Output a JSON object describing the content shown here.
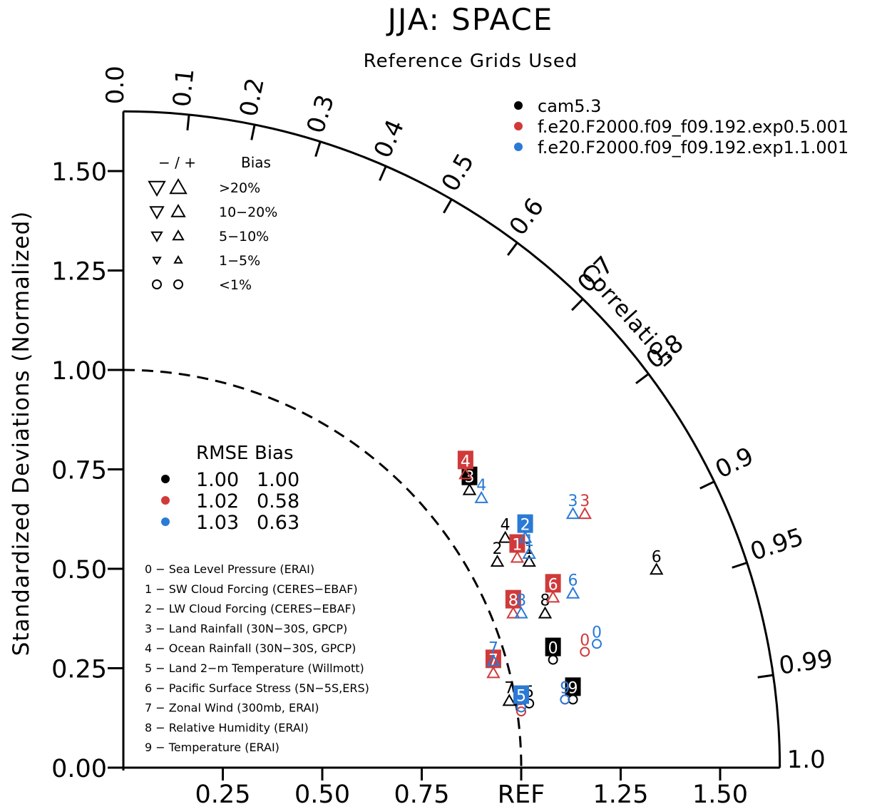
{
  "chart_data": {
    "type": "scatter",
    "subtype": "taylor-diagram",
    "title": "JJA: SPACE",
    "subtitle": "Reference Grids Used",
    "ylabel": "Standardized Deviations (Normalized)",
    "angular_label": "Correlation",
    "ref_label": "REF",
    "ylim": [
      0,
      1.65
    ],
    "std_ticks": [
      "0.00",
      "0.25",
      "0.50",
      "0.75",
      "1.00",
      "1.25",
      "1.50"
    ],
    "x_ticks": [
      "0.25",
      "0.50",
      "0.75",
      "REF",
      "1.25",
      "1.50"
    ],
    "corr_ticks": [
      "0.0",
      "0.1",
      "0.2",
      "0.3",
      "0.4",
      "0.5",
      "0.6",
      "0.7",
      "0.8",
      "0.9",
      "0.95",
      "0.99",
      "1.0"
    ],
    "reference_arc_radius": 1.0,
    "grid": false,
    "legend": {
      "placement": "top-right",
      "entries": [
        {
          "name": "cam5.3",
          "color": "#000000"
        },
        {
          "name": "f.e20.F2000.f09_f09.192.exp0.5.001",
          "color": "#d03a3a"
        },
        {
          "name": "f.e20.F2000.f09_f09.192.exp1.1.001",
          "color": "#2a7ad6"
        }
      ]
    },
    "bias_key": {
      "header_sign": "− / +",
      "header_label": "Bias",
      "rows": [
        ">20%",
        "10−20%",
        "5−10%",
        "1−5%",
        "<1%"
      ]
    },
    "rmse_table": {
      "headers": [
        "RMSE",
        "Bias"
      ],
      "rows": [
        {
          "rmse": "1.00",
          "bias": "1.00",
          "color": "#000000"
        },
        {
          "rmse": "1.02",
          "bias": "0.58",
          "color": "#d03a3a"
        },
        {
          "rmse": "1.03",
          "bias": "0.63",
          "color": "#2a7ad6"
        }
      ]
    },
    "variables": [
      "0 − Sea Level Pressure (ERAI)",
      "1 − SW Cloud Forcing (CERES−EBAF)",
      "2 − LW Cloud Forcing (CERES−EBAF)",
      "3 − Land Rainfall (30N−30S, GPCP)",
      "4 − Ocean Rainfall (30N−30S, GPCP)",
      "5 − Land 2−m Temperature (Willmott)",
      "6 − Pacific Surface Stress (5N−5S,ERS)",
      "7 − Zonal Wind (300mb, ERAI)",
      "8 − Relative Humidity (ERAI)",
      "9 − Temperature (ERAI)"
    ],
    "series": [
      {
        "name": "cam5.3",
        "color": "#000000",
        "points": [
          {
            "label": "0",
            "x": 1.08,
            "y": 0.3,
            "boxed": true,
            "marker": "circle"
          },
          {
            "label": "1",
            "x": 1.02,
            "y": 0.55,
            "boxed": false,
            "marker": "triangle-up"
          },
          {
            "label": "2",
            "x": 0.94,
            "y": 0.55,
            "boxed": false,
            "marker": "triangle-up"
          },
          {
            "label": "3",
            "x": 0.87,
            "y": 0.73,
            "boxed": true,
            "marker": "triangle-up"
          },
          {
            "label": "4",
            "x": 0.96,
            "y": 0.61,
            "boxed": false,
            "marker": "triangle-up"
          },
          {
            "label": "5",
            "x": 1.02,
            "y": 0.19,
            "boxed": false,
            "marker": "circle"
          },
          {
            "label": "6",
            "x": 1.34,
            "y": 0.53,
            "boxed": false,
            "marker": "triangle-up"
          },
          {
            "label": "7",
            "x": 0.97,
            "y": 0.2,
            "boxed": false,
            "marker": "triangle-up"
          },
          {
            "label": "8",
            "x": 1.06,
            "y": 0.42,
            "boxed": false,
            "marker": "triangle-up"
          },
          {
            "label": "9",
            "x": 1.13,
            "y": 0.2,
            "boxed": true,
            "marker": "circle"
          }
        ]
      },
      {
        "name": "f.e20.F2000.f09_f09.192.exp0.5.001",
        "color": "#d03a3a",
        "points": [
          {
            "label": "0",
            "x": 1.16,
            "y": 0.32,
            "boxed": false,
            "marker": "circle"
          },
          {
            "label": "1",
            "x": 0.99,
            "y": 0.56,
            "boxed": true,
            "marker": "triangle-up"
          },
          {
            "label": "3",
            "x": 1.16,
            "y": 0.67,
            "boxed": false,
            "marker": "triangle-up"
          },
          {
            "label": "4",
            "x": 0.86,
            "y": 0.77,
            "boxed": true,
            "marker": "triangle-up"
          },
          {
            "label": "5",
            "x": 1.0,
            "y": 0.17,
            "boxed": false,
            "marker": "circle"
          },
          {
            "label": "6",
            "x": 1.08,
            "y": 0.46,
            "boxed": true,
            "marker": "triangle-up"
          },
          {
            "label": "7",
            "x": 0.93,
            "y": 0.27,
            "boxed": true,
            "marker": "triangle-up"
          },
          {
            "label": "8",
            "x": 0.98,
            "y": 0.42,
            "boxed": true,
            "marker": "triangle-up"
          },
          {
            "label": "9",
            "x": 1.11,
            "y": 0.2,
            "boxed": false,
            "marker": "circle"
          }
        ]
      },
      {
        "name": "f.e20.F2000.f09_f09.192.exp1.1.001",
        "color": "#2a7ad6",
        "points": [
          {
            "label": "0",
            "x": 1.19,
            "y": 0.34,
            "boxed": false,
            "marker": "circle"
          },
          {
            "label": "1",
            "x": 1.02,
            "y": 0.57,
            "boxed": false,
            "marker": "triangle-up"
          },
          {
            "label": "2",
            "x": 1.01,
            "y": 0.61,
            "boxed": true,
            "marker": "triangle-up"
          },
          {
            "label": "3",
            "x": 1.13,
            "y": 0.67,
            "boxed": false,
            "marker": "triangle-up"
          },
          {
            "label": "4",
            "x": 0.9,
            "y": 0.71,
            "boxed": false,
            "marker": "triangle-up"
          },
          {
            "label": "5",
            "x": 1.0,
            "y": 0.18,
            "boxed": true,
            "marker": "circle"
          },
          {
            "label": "6",
            "x": 1.13,
            "y": 0.47,
            "boxed": false,
            "marker": "triangle-up"
          },
          {
            "label": "7",
            "x": 0.93,
            "y": 0.3,
            "boxed": false,
            "marker": "triangle-up"
          },
          {
            "label": "8",
            "x": 1.0,
            "y": 0.42,
            "boxed": false,
            "marker": "triangle-up"
          },
          {
            "label": "9",
            "x": 1.11,
            "y": 0.2,
            "boxed": false,
            "marker": "circle"
          }
        ]
      }
    ]
  }
}
